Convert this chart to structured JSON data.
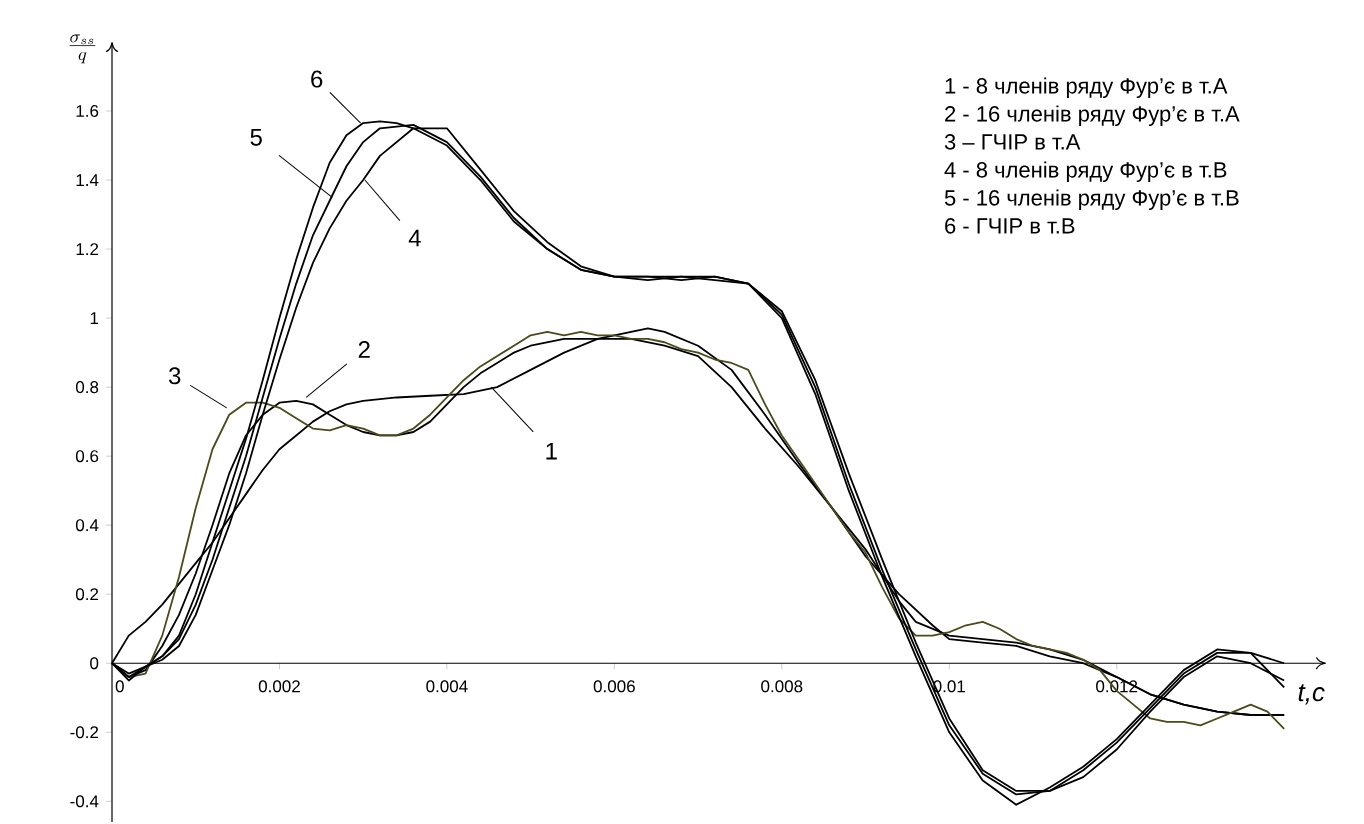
{
  "chart_data": {
    "type": "line",
    "xlabel": "t,c",
    "ylabel": "\\frac{\\sigma_{ss}}{q}",
    "xlim": [
      0,
      0.0145
    ],
    "ylim": [
      -0.46,
      1.8
    ],
    "xticks": [
      0,
      0.002,
      0.004,
      0.006,
      0.008,
      0.01,
      0.012
    ],
    "yticks": [
      -0.4,
      -0.2,
      0,
      0.2,
      0.4,
      0.6,
      0.8,
      1,
      1.2,
      1.4,
      1.6
    ],
    "grid": false,
    "marker": "none",
    "line_style": "solid",
    "annotations": [
      {
        "text": "1",
        "x": 0.00453,
        "y": 0.8
      },
      {
        "text": "2",
        "x": 0.00232,
        "y": 0.77
      },
      {
        "text": "3",
        "x": 0.00137,
        "y": 0.74
      },
      {
        "text": "4",
        "x": 0.00302,
        "y": 1.4
      },
      {
        "text": "5",
        "x": 0.00263,
        "y": 1.35
      },
      {
        "text": "6",
        "x": 0.00297,
        "y": 1.565
      },
      "1 - 8 членів ряду Фур’є в т.А",
      "2 - 16 членів ряду Фур’є в т.А",
      "3 – ГЧІР в т.А",
      "4 - 8 членів ряду Фур’є в т.В",
      "5 - 16 членів ряду Фур’є в т.В",
      "6 - ГЧІР в т.В"
    ],
    "series": [
      {
        "color": "#000000",
        "x": [
          0,
          0.0002,
          0.0004,
          0.0006,
          0.0008,
          0.001,
          0.0012,
          0.0014,
          0.0016,
          0.0018,
          0.002,
          0.0022,
          0.0024,
          0.0026,
          0.0028,
          0.003,
          0.0034,
          0.0038,
          0.0042,
          0.0046,
          0.005,
          0.0054,
          0.0058,
          0.0062,
          0.0064,
          0.0066,
          0.007,
          0.0074,
          0.0078,
          0.0082,
          0.0086,
          0.009,
          0.0094,
          0.0098,
          0.01,
          0.0104,
          0.0108,
          0.0112,
          0.0116,
          0.012,
          0.0124,
          0.0128,
          0.0132,
          0.0136,
          0.014
        ],
        "values": [
          0,
          0.08,
          0.12,
          0.17,
          0.23,
          0.29,
          0.35,
          0.42,
          0.49,
          0.56,
          0.62,
          0.66,
          0.7,
          0.73,
          0.75,
          0.76,
          0.77,
          0.775,
          0.78,
          0.8,
          0.85,
          0.9,
          0.94,
          0.96,
          0.97,
          0.96,
          0.92,
          0.85,
          0.72,
          0.58,
          0.45,
          0.31,
          0.2,
          0.11,
          0.07,
          0.06,
          0.05,
          0.02,
          0,
          -0.04,
          -0.09,
          -0.12,
          -0.14,
          -0.15,
          -0.15
        ]
      },
      {
        "color": "#000000",
        "x": [
          0,
          0.0002,
          0.0004,
          0.0006,
          0.0008,
          0.001,
          0.0012,
          0.0014,
          0.0016,
          0.0018,
          0.002,
          0.0022,
          0.0024,
          0.0026,
          0.0028,
          0.003,
          0.0032,
          0.0034,
          0.0036,
          0.0038,
          0.004,
          0.0042,
          0.0044,
          0.0046,
          0.0048,
          0.005,
          0.0054,
          0.0058,
          0.0062,
          0.0066,
          0.007,
          0.0074,
          0.0078,
          0.0082,
          0.0086,
          0.009,
          0.0094,
          0.0096,
          0.01,
          0.0104,
          0.0108,
          0.0112,
          0.0116,
          0.012,
          0.0124,
          0.0128,
          0.0132,
          0.0136,
          0.014
        ],
        "values": [
          0,
          -0.04,
          -0.02,
          0.05,
          0.14,
          0.26,
          0.4,
          0.55,
          0.66,
          0.72,
          0.755,
          0.76,
          0.75,
          0.72,
          0.69,
          0.67,
          0.66,
          0.66,
          0.67,
          0.7,
          0.75,
          0.8,
          0.84,
          0.87,
          0.9,
          0.92,
          0.94,
          0.94,
          0.94,
          0.92,
          0.89,
          0.8,
          0.68,
          0.57,
          0.45,
          0.33,
          0.18,
          0.12,
          0.08,
          0.07,
          0.06,
          0.04,
          0.01,
          -0.04,
          -0.09,
          -0.12,
          -0.14,
          -0.15,
          -0.15
        ]
      },
      {
        "color": "#4a4a1a",
        "x": [
          0,
          0.0002,
          0.0004,
          0.0006,
          0.0008,
          0.001,
          0.0012,
          0.0014,
          0.0016,
          0.0018,
          0.002,
          0.0022,
          0.0024,
          0.0026,
          0.0028,
          0.003,
          0.0032,
          0.0034,
          0.0036,
          0.0038,
          0.004,
          0.0042,
          0.0044,
          0.0046,
          0.0048,
          0.005,
          0.0052,
          0.0054,
          0.0056,
          0.0058,
          0.006,
          0.0062,
          0.0064,
          0.0066,
          0.0068,
          0.007,
          0.0072,
          0.0074,
          0.0076,
          0.0078,
          0.008,
          0.0082,
          0.0084,
          0.0086,
          0.0088,
          0.009,
          0.0092,
          0.0094,
          0.0096,
          0.0098,
          0.01,
          0.0102,
          0.0104,
          0.0106,
          0.0108,
          0.011,
          0.0112,
          0.0114,
          0.0116,
          0.0118,
          0.012,
          0.0122,
          0.0124,
          0.0126,
          0.0128,
          0.013,
          0.0132,
          0.0134,
          0.0136,
          0.0138,
          0.014
        ],
        "values": [
          0,
          -0.04,
          -0.03,
          0.08,
          0.25,
          0.45,
          0.62,
          0.72,
          0.755,
          0.755,
          0.74,
          0.71,
          0.68,
          0.675,
          0.69,
          0.68,
          0.66,
          0.66,
          0.68,
          0.72,
          0.77,
          0.82,
          0.86,
          0.89,
          0.92,
          0.95,
          0.96,
          0.95,
          0.96,
          0.95,
          0.95,
          0.94,
          0.94,
          0.93,
          0.91,
          0.9,
          0.88,
          0.87,
          0.85,
          0.75,
          0.66,
          0.59,
          0.52,
          0.45,
          0.38,
          0.32,
          0.22,
          0.13,
          0.08,
          0.08,
          0.09,
          0.11,
          0.12,
          0.1,
          0.07,
          0.05,
          0.04,
          0.03,
          0.01,
          -0.02,
          -0.08,
          -0.12,
          -0.16,
          -0.17,
          -0.17,
          -0.18,
          -0.16,
          -0.14,
          -0.12,
          -0.14,
          -0.19
        ]
      },
      {
        "color": "#000000",
        "x": [
          0,
          0.0002,
          0.0004,
          0.0006,
          0.0008,
          0.001,
          0.0012,
          0.0014,
          0.0016,
          0.0018,
          0.002,
          0.0022,
          0.0024,
          0.0026,
          0.0028,
          0.003,
          0.0032,
          0.0036,
          0.004,
          0.0044,
          0.0048,
          0.0052,
          0.0056,
          0.006,
          0.0064,
          0.0068,
          0.0072,
          0.0076,
          0.008,
          0.0084,
          0.0088,
          0.0092,
          0.0096,
          0.01,
          0.0104,
          0.0108,
          0.0112,
          0.0116,
          0.012,
          0.0124,
          0.0128,
          0.0132,
          0.0136,
          0.014
        ],
        "values": [
          0,
          -0.03,
          -0.01,
          0.01,
          0.05,
          0.14,
          0.27,
          0.4,
          0.55,
          0.72,
          0.88,
          1.03,
          1.16,
          1.26,
          1.34,
          1.4,
          1.47,
          1.55,
          1.55,
          1.43,
          1.31,
          1.22,
          1.15,
          1.12,
          1.11,
          1.12,
          1.12,
          1.1,
          1.02,
          0.82,
          0.55,
          0.3,
          0.06,
          -0.16,
          -0.31,
          -0.37,
          -0.37,
          -0.33,
          -0.25,
          -0.14,
          -0.04,
          0.02,
          0.0,
          -0.05
        ]
      },
      {
        "color": "#000000",
        "x": [
          0,
          0.0002,
          0.0004,
          0.0006,
          0.0008,
          0.001,
          0.0012,
          0.0014,
          0.0016,
          0.0018,
          0.002,
          0.0022,
          0.0024,
          0.0026,
          0.0028,
          0.003,
          0.0032,
          0.0036,
          0.004,
          0.0044,
          0.0048,
          0.0052,
          0.0056,
          0.006,
          0.0064,
          0.0068,
          0.0072,
          0.0076,
          0.008,
          0.0084,
          0.0088,
          0.0092,
          0.0096,
          0.01,
          0.0104,
          0.0108,
          0.0112,
          0.0116,
          0.012,
          0.0124,
          0.0128,
          0.0132,
          0.0136,
          0.014
        ],
        "values": [
          0,
          -0.04,
          -0.01,
          0.02,
          0.07,
          0.17,
          0.3,
          0.45,
          0.6,
          0.77,
          0.94,
          1.1,
          1.24,
          1.34,
          1.44,
          1.51,
          1.55,
          1.56,
          1.51,
          1.41,
          1.29,
          1.2,
          1.14,
          1.12,
          1.12,
          1.11,
          1.12,
          1.1,
          1.01,
          0.8,
          0.52,
          0.27,
          0.04,
          -0.18,
          -0.32,
          -0.38,
          -0.37,
          -0.31,
          -0.23,
          -0.13,
          -0.03,
          0.03,
          0.03,
          0.0
        ]
      },
      {
        "color": "#000000",
        "x": [
          0,
          0.0002,
          0.0004,
          0.0006,
          0.0008,
          0.001,
          0.0012,
          0.0014,
          0.0016,
          0.0018,
          0.002,
          0.0022,
          0.0024,
          0.0026,
          0.0028,
          0.003,
          0.0032,
          0.0034,
          0.0036,
          0.004,
          0.0044,
          0.0048,
          0.0052,
          0.0056,
          0.006,
          0.0064,
          0.0068,
          0.0072,
          0.0076,
          0.008,
          0.0084,
          0.0088,
          0.0092,
          0.0096,
          0.01,
          0.0104,
          0.0108,
          0.0112,
          0.0116,
          0.012,
          0.0124,
          0.0128,
          0.0132,
          0.0136,
          0.014
        ],
        "values": [
          0,
          -0.05,
          -0.01,
          0.02,
          0.08,
          0.2,
          0.35,
          0.5,
          0.65,
          0.82,
          1.0,
          1.17,
          1.32,
          1.45,
          1.53,
          1.565,
          1.57,
          1.565,
          1.55,
          1.5,
          1.4,
          1.28,
          1.2,
          1.14,
          1.12,
          1.12,
          1.12,
          1.11,
          1.1,
          1.0,
          0.78,
          0.5,
          0.25,
          0.02,
          -0.2,
          -0.34,
          -0.41,
          -0.36,
          -0.3,
          -0.22,
          -0.12,
          -0.02,
          0.04,
          0.03,
          -0.07
        ]
      }
    ]
  }
}
